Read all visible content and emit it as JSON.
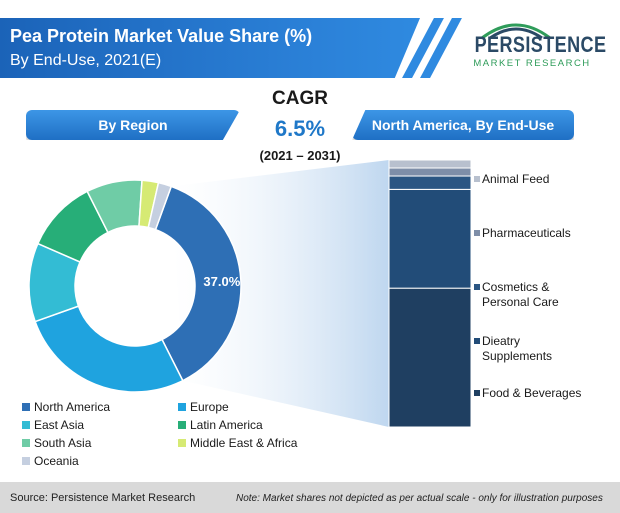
{
  "header": {
    "title_line1": "Pea Protein Market Value Share (%)",
    "title_line2": "By End-Use, 2021(E)"
  },
  "logo": {
    "name": "PERSISTENCE",
    "subtitle": "MARKET RESEARCH",
    "colors": [
      "#2f9c5a",
      "#2b4a66"
    ]
  },
  "cagr": {
    "label": "CAGR",
    "value": "6.5%",
    "period": "(2021 – 2031)"
  },
  "sections": {
    "region_label": "By Region",
    "na_label": "North America, By End-Use"
  },
  "chart_data": [
    {
      "type": "pie",
      "variant": "donut",
      "title": "By Region",
      "categories": [
        "North America",
        "Europe",
        "East Asia",
        "Latin America",
        "South Asia",
        "Middle East & Africa",
        "Oceania"
      ],
      "values": [
        37.0,
        27.0,
        12.0,
        11.0,
        8.5,
        2.5,
        2.0
      ],
      "data_labels": [
        "37.0%",
        "",
        "",
        "",
        "",
        "",
        ""
      ],
      "colors": [
        "#2e6fb5",
        "#1fa3df",
        "#33bcd4",
        "#27ae78",
        "#6fcca6",
        "#d6ea74",
        "#c5cfe0"
      ],
      "legend_position": "bottom"
    },
    {
      "type": "bar",
      "variant": "100% stacked column",
      "title": "North America, By End-Use",
      "categories": [
        "Food & Beverages",
        "Dieatry Supplements",
        "Cosmetics & Personal Care",
        "Pharmaceuticals",
        "Animal Feed"
      ],
      "values": [
        52.0,
        37.0,
        5.0,
        3.0,
        3.0
      ],
      "colors": [
        "#1f3f61",
        "#224c78",
        "#2b5683",
        "#7e8ea8",
        "#b8c0ce"
      ],
      "legend_position": "right"
    }
  ],
  "legend_region": [
    {
      "label": "North America",
      "color": "#2e6fb5"
    },
    {
      "label": "Europe",
      "color": "#1fa3df"
    },
    {
      "label": "East Asia",
      "color": "#33bcd4"
    },
    {
      "label": "Latin America",
      "color": "#27ae78"
    },
    {
      "label": "South Asia",
      "color": "#6fcca6"
    },
    {
      "label": "Middle East & Africa",
      "color": "#d6ea74"
    },
    {
      "label": "Oceania",
      "color": "#c5cfe0"
    }
  ],
  "legend_enduse": [
    {
      "line1": "Animal Feed",
      "line2": "",
      "color": "#b8c0ce"
    },
    {
      "line1": "Pharmaceuticals",
      "line2": "",
      "color": "#7e8ea8"
    },
    {
      "line1": "Cosmetics &",
      "line2": "Personal Care",
      "color": "#2b5683"
    },
    {
      "line1": "Dieatry",
      "line2": "Supplements",
      "color": "#224c78"
    },
    {
      "line1": "Food & Beverages",
      "line2": "",
      "color": "#1f3f61"
    }
  ],
  "footer": {
    "source": "Source: Persistence Market Research",
    "note": "Note: Market shares not depicted as per actual scale - only for illustration purposes"
  }
}
